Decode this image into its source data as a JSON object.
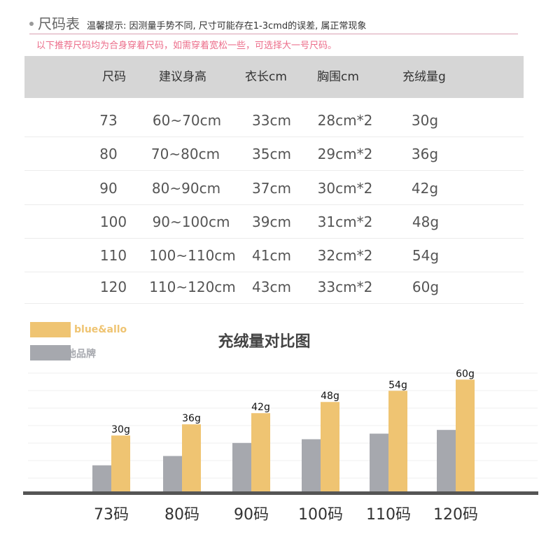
{
  "header": {
    "title": "尺码表",
    "tip": "温馨提示: 因测量手势不同, 尺寸可能存在1-3cmd的误差, 属正常现象",
    "advice": "以下推荐尺码均为合身穿着尺码，如需穿着宽松一些，可选择大一号尺码。"
  },
  "size_table": {
    "columns": [
      "尺码",
      "建议身高",
      "衣长cm",
      "胸围cm",
      "充绒量g"
    ],
    "rows": [
      [
        "73",
        "60~70cm",
        "33cm",
        "28cm*2",
        "30g"
      ],
      [
        "80",
        "70~80cm",
        "35cm",
        "29cm*2",
        "36g"
      ],
      [
        "90",
        "80~90cm",
        "37cm",
        "30cm*2",
        "42g"
      ],
      [
        "100",
        "90~100cm",
        "39cm",
        "31cm*2",
        "48g"
      ],
      [
        "110",
        "100~110cm",
        "41cm",
        "32cm*2",
        "54g"
      ],
      [
        "120",
        "110~120cm",
        "43cm",
        "33cm*2",
        "60g"
      ]
    ]
  },
  "chart_data": {
    "type": "bar",
    "title": "充绒量对比图",
    "categories": [
      "73码",
      "80码",
      "90码",
      "100码",
      "110码",
      "120码"
    ],
    "series": [
      {
        "name": "其他品牌",
        "values": [
          14,
          19,
          26,
          28,
          31,
          33
        ],
        "color": "#a6a8ae"
      },
      {
        "name": "blue&allo",
        "values": [
          30,
          36,
          42,
          48,
          54,
          60
        ],
        "color": "#efc472"
      }
    ],
    "data_labels": [
      "30g",
      "36g",
      "42g",
      "48g",
      "54g",
      "60g"
    ],
    "ylim": [
      0,
      65
    ],
    "grid": true,
    "legend": "top-left"
  }
}
